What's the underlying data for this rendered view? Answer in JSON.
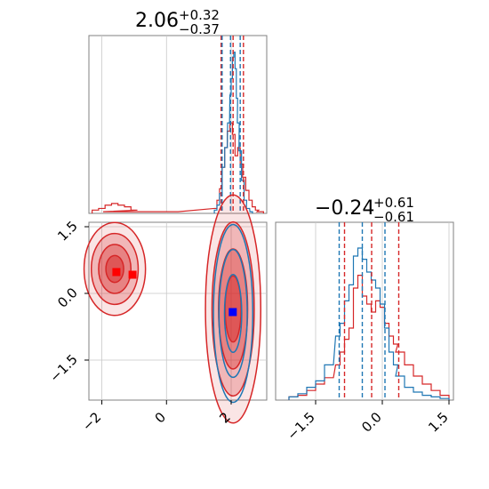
{
  "chart_data": {
    "type": "corner",
    "colors": {
      "series_a": "#1f77b4",
      "series_b": "#d62728",
      "grid": "#c8c8c8",
      "axes": "#808080"
    },
    "series": [
      {
        "color": "#1f77b4"
      },
      {
        "color": "#d62728"
      }
    ],
    "panels": [
      {
        "id": "param1-marginal",
        "type": "histogram",
        "title": {
          "value": "2.06",
          "plus": "+0.32",
          "minus": "−0.37"
        },
        "xlim": [
          -2.4,
          3.1
        ],
        "quantiles": {
          "blue": [
            1.72,
            1.98,
            2.28
          ],
          "red": [
            1.69,
            2.06,
            2.38
          ]
        },
        "blue_hist": {
          "x": [
            1.52,
            1.6,
            1.68,
            1.76,
            1.84,
            1.92,
            1.98,
            2.02,
            2.06,
            2.1,
            2.14,
            2.18,
            2.22,
            2.28,
            2.36,
            2.44,
            2.52,
            2.62
          ],
          "y": [
            0.02,
            0.05,
            0.12,
            0.28,
            0.4,
            0.55,
            0.72,
            0.82,
            0.95,
            0.98,
            0.88,
            0.7,
            0.55,
            0.38,
            0.2,
            0.08,
            0.03,
            0.01
          ]
        },
        "red_hist": {
          "x": [
            -2.2,
            -2.0,
            -1.8,
            -1.6,
            -1.4,
            -1.2,
            -1.0,
            -0.8,
            1.52,
            1.6,
            1.68,
            1.76,
            1.84,
            1.92,
            2.0,
            2.08,
            2.16,
            2.24,
            2.32,
            2.4,
            2.5,
            2.6,
            2.7,
            2.8,
            2.9
          ],
          "y": [
            0.02,
            0.03,
            0.05,
            0.06,
            0.05,
            0.04,
            0.02,
            0.01,
            0.03,
            0.08,
            0.15,
            0.28,
            0.4,
            0.5,
            0.55,
            0.48,
            0.35,
            0.4,
            0.3,
            0.22,
            0.14,
            0.08,
            0.04,
            0.02,
            0.01
          ]
        }
      },
      {
        "id": "param2-marginal",
        "type": "histogram",
        "title": {
          "value": "−0.24",
          "plus": "+0.61",
          "minus": "−0.61"
        },
        "xlim": [
          -2.4,
          1.6
        ],
        "xticks": [
          "−1.5",
          "0.0",
          "1.5"
        ],
        "xtick_values": [
          -1.5,
          0.0,
          1.5
        ],
        "quantiles": {
          "blue": [
            -0.97,
            -0.45,
            0.06
          ],
          "red": [
            -0.85,
            -0.24,
            0.37
          ]
        },
        "blue_hist": {
          "x": [
            -2.0,
            -1.8,
            -1.6,
            -1.4,
            -1.2,
            -1.0,
            -0.9,
            -0.8,
            -0.7,
            -0.6,
            -0.5,
            -0.4,
            -0.3,
            -0.2,
            -0.1,
            0.0,
            0.1,
            0.2,
            0.3,
            0.4,
            0.6,
            0.8,
            1.0,
            1.2,
            1.4
          ],
          "y": [
            0.02,
            0.04,
            0.08,
            0.12,
            0.22,
            0.4,
            0.48,
            0.62,
            0.72,
            0.9,
            0.95,
            0.88,
            0.8,
            0.75,
            0.7,
            0.6,
            0.45,
            0.3,
            0.22,
            0.15,
            0.08,
            0.05,
            0.03,
            0.02,
            0.01
          ]
        },
        "red_hist": {
          "x": [
            -2.0,
            -1.8,
            -1.6,
            -1.4,
            -1.2,
            -1.0,
            -0.9,
            -0.8,
            -0.7,
            -0.6,
            -0.5,
            -0.4,
            -0.3,
            -0.2,
            -0.1,
            0.0,
            0.1,
            0.2,
            0.3,
            0.4,
            0.6,
            0.8,
            1.0,
            1.2,
            1.4
          ],
          "y": [
            0.02,
            0.03,
            0.06,
            0.1,
            0.14,
            0.22,
            0.3,
            0.38,
            0.45,
            0.7,
            0.78,
            0.65,
            0.6,
            0.55,
            0.62,
            0.58,
            0.48,
            0.4,
            0.35,
            0.3,
            0.22,
            0.15,
            0.1,
            0.06,
            0.03
          ]
        }
      },
      {
        "id": "joint",
        "type": "2d-contour",
        "xlim": [
          -2.4,
          3.1
        ],
        "ylim": [
          -2.4,
          1.6
        ],
        "xticks": [
          "−2",
          "0",
          "2"
        ],
        "xtick_values": [
          -2,
          0,
          2
        ],
        "yticks": [
          "1.5",
          "0.0",
          "−1.5"
        ],
        "ytick_values": [
          1.5,
          0.0,
          -1.5
        ],
        "red_modes": [
          {
            "cx": 2.06,
            "cy": -0.35,
            "sx": 0.45,
            "sy": 1.35
          },
          {
            "cx": -1.6,
            "cy": 0.55,
            "sx": 0.5,
            "sy": 0.55
          }
        ],
        "blue_modes": [
          {
            "cx": 2.06,
            "cy": -0.45,
            "sx": 0.38,
            "sy": 1.25
          }
        ],
        "red_markers": [
          {
            "x": -1.55,
            "y": 0.48
          },
          {
            "x": -1.05,
            "y": 0.42
          }
        ],
        "blue_marker": {
          "x": 2.05,
          "y": -0.42
        }
      }
    ]
  }
}
